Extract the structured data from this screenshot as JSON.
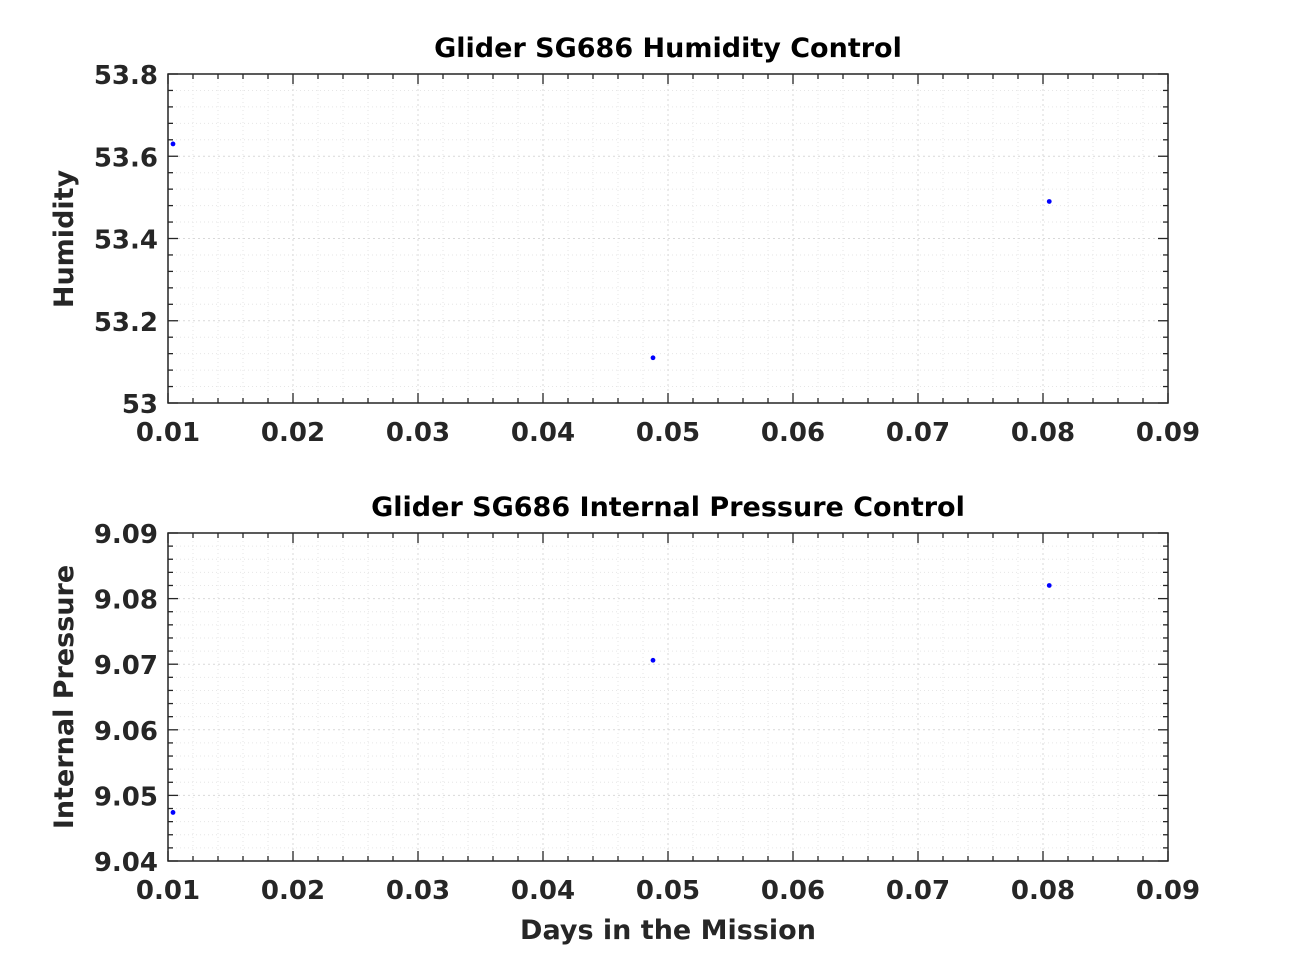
{
  "chart_data": [
    {
      "type": "scatter",
      "title": "Glider SG686 Humidity Control",
      "xlabel": "",
      "ylabel": "Humidity",
      "xlim": [
        0.01,
        0.09
      ],
      "ylim": [
        53,
        53.8
      ],
      "x_ticks": [
        0.01,
        0.02,
        0.03,
        0.04,
        0.05,
        0.06,
        0.07,
        0.08,
        0.09
      ],
      "x_tick_labels": [
        "0.01",
        "0.02",
        "0.03",
        "0.04",
        "0.05",
        "0.06",
        "0.07",
        "0.08",
        "0.09"
      ],
      "y_ticks": [
        53,
        53.2,
        53.4,
        53.6,
        53.8
      ],
      "y_tick_labels": [
        "53",
        "53.2",
        "53.4",
        "53.6",
        "53.8"
      ],
      "grid": true,
      "minor_grid": true,
      "marker_color": "#0000ff",
      "series": [
        {
          "x": [
            0.0104,
            0.0488,
            0.0805
          ],
          "y": [
            53.63,
            53.11,
            53.49
          ]
        }
      ]
    },
    {
      "type": "scatter",
      "title": "Glider SG686 Internal Pressure Control",
      "xlabel": "Days in the Mission",
      "ylabel": "Internal Pressure",
      "xlim": [
        0.01,
        0.09
      ],
      "ylim": [
        9.04,
        9.09
      ],
      "x_ticks": [
        0.01,
        0.02,
        0.03,
        0.04,
        0.05,
        0.06,
        0.07,
        0.08,
        0.09
      ],
      "x_tick_labels": [
        "0.01",
        "0.02",
        "0.03",
        "0.04",
        "0.05",
        "0.06",
        "0.07",
        "0.08",
        "0.09"
      ],
      "y_ticks": [
        9.04,
        9.05,
        9.06,
        9.07,
        9.08,
        9.09
      ],
      "y_tick_labels": [
        "9.04",
        "9.05",
        "9.06",
        "9.07",
        "9.08",
        "9.09"
      ],
      "grid": true,
      "minor_grid": true,
      "marker_color": "#0000ff",
      "series": [
        {
          "x": [
            0.0104,
            0.0488,
            0.0805
          ],
          "y": [
            9.0474,
            9.0706,
            9.082
          ]
        }
      ]
    }
  ]
}
